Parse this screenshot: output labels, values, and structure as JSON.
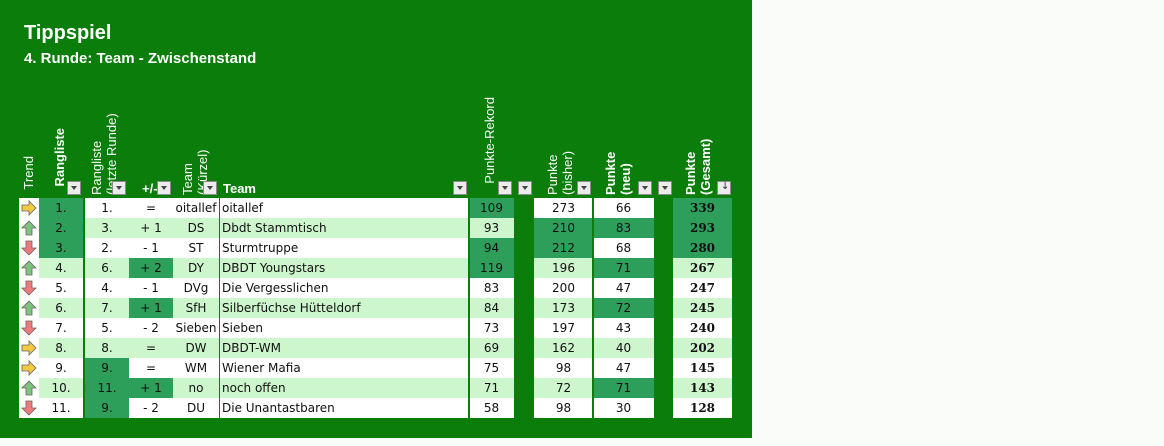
{
  "title": "Tippspiel",
  "subtitle": "4. Runde: Team - Zwischenstand",
  "headers": {
    "trend": "Trend",
    "rang": "Rangliste",
    "rang_prev": "Rangliste\n(letzte Runde)",
    "diff": "+/-",
    "kuerzel": "Team\n(Kürzel)",
    "team": "Team",
    "rekord": "Punkte-Rekord",
    "bisher": "Punkte\n(bisher)",
    "neu": "Punkte\n(neu)",
    "gesamt": "Punkte\n(Gesamt)"
  },
  "colors": {
    "panel": "#0a7d0a",
    "highlight": "#2e9e5b",
    "row_even": "#ffffff",
    "row_odd": "#cdf6cd",
    "arrow_up": "#7ec27e",
    "arrow_down": "#f07a7a",
    "arrow_same": "#f5c842"
  },
  "rows": [
    {
      "trend": "same",
      "rang": "1.",
      "prev": "1.",
      "diff": "=",
      "kuerzel": "oitallef",
      "team": "oitallef",
      "rekord": "109",
      "bisher": "273",
      "neu": "66",
      "gesamt": "339",
      "hl": [
        "rang",
        "rekord",
        "gesamt"
      ]
    },
    {
      "trend": "up",
      "rang": "2.",
      "prev": "3.",
      "diff": "+ 1",
      "kuerzel": "DS",
      "team": "Dbdt Stammtisch",
      "rekord": "93",
      "bisher": "210",
      "neu": "83",
      "gesamt": "293",
      "hl": [
        "rang",
        "bisher",
        "neu",
        "gesamt"
      ]
    },
    {
      "trend": "down",
      "rang": "3.",
      "prev": "2.",
      "diff": "- 1",
      "kuerzel": "ST",
      "team": "Sturmtruppe",
      "rekord": "94",
      "bisher": "212",
      "neu": "68",
      "gesamt": "280",
      "hl": [
        "rang",
        "rekord",
        "bisher",
        "gesamt"
      ]
    },
    {
      "trend": "up",
      "rang": "4.",
      "prev": "6.",
      "diff": "+ 2",
      "kuerzel": "DY",
      "team": "DBDT Youngstars",
      "rekord": "119",
      "bisher": "196",
      "neu": "71",
      "gesamt": "267",
      "hl": [
        "diff",
        "rekord",
        "neu"
      ]
    },
    {
      "trend": "down",
      "rang": "5.",
      "prev": "4.",
      "diff": "- 1",
      "kuerzel": "DVg",
      "team": "Die Vergesslichen",
      "rekord": "83",
      "bisher": "200",
      "neu": "47",
      "gesamt": "247",
      "hl": []
    },
    {
      "trend": "up",
      "rang": "6.",
      "prev": "7.",
      "diff": "+ 1",
      "kuerzel": "SfH",
      "team": "Silberfüchse Hütteldorf",
      "rekord": "84",
      "bisher": "173",
      "neu": "72",
      "gesamt": "245",
      "hl": [
        "diff",
        "neu"
      ]
    },
    {
      "trend": "down",
      "rang": "7.",
      "prev": "5.",
      "diff": "- 2",
      "kuerzel": "Sieben",
      "team": "Sieben",
      "rekord": "73",
      "bisher": "197",
      "neu": "43",
      "gesamt": "240",
      "hl": []
    },
    {
      "trend": "same",
      "rang": "8.",
      "prev": "8.",
      "diff": "=",
      "kuerzel": "DW",
      "team": "DBDT-WM",
      "rekord": "69",
      "bisher": "162",
      "neu": "40",
      "gesamt": "202",
      "hl": []
    },
    {
      "trend": "same",
      "rang": "9.",
      "prev": "9.",
      "diff": "=",
      "kuerzel": "WM",
      "team": "Wiener Mafia",
      "rekord": "75",
      "bisher": "98",
      "neu": "47",
      "gesamt": "145",
      "hl": [
        "prev"
      ]
    },
    {
      "trend": "up",
      "rang": "10.",
      "prev": "11.",
      "diff": "+ 1",
      "kuerzel": "no",
      "team": "noch offen",
      "rekord": "71",
      "bisher": "72",
      "neu": "71",
      "gesamt": "143",
      "hl": [
        "prev",
        "diff",
        "neu"
      ]
    },
    {
      "trend": "down",
      "rang": "11.",
      "prev": "9.",
      "diff": "- 2",
      "kuerzel": "DU",
      "team": "Die Unantastbaren",
      "rekord": "58",
      "bisher": "98",
      "neu": "30",
      "gesamt": "128",
      "hl": [
        "prev"
      ]
    }
  ]
}
